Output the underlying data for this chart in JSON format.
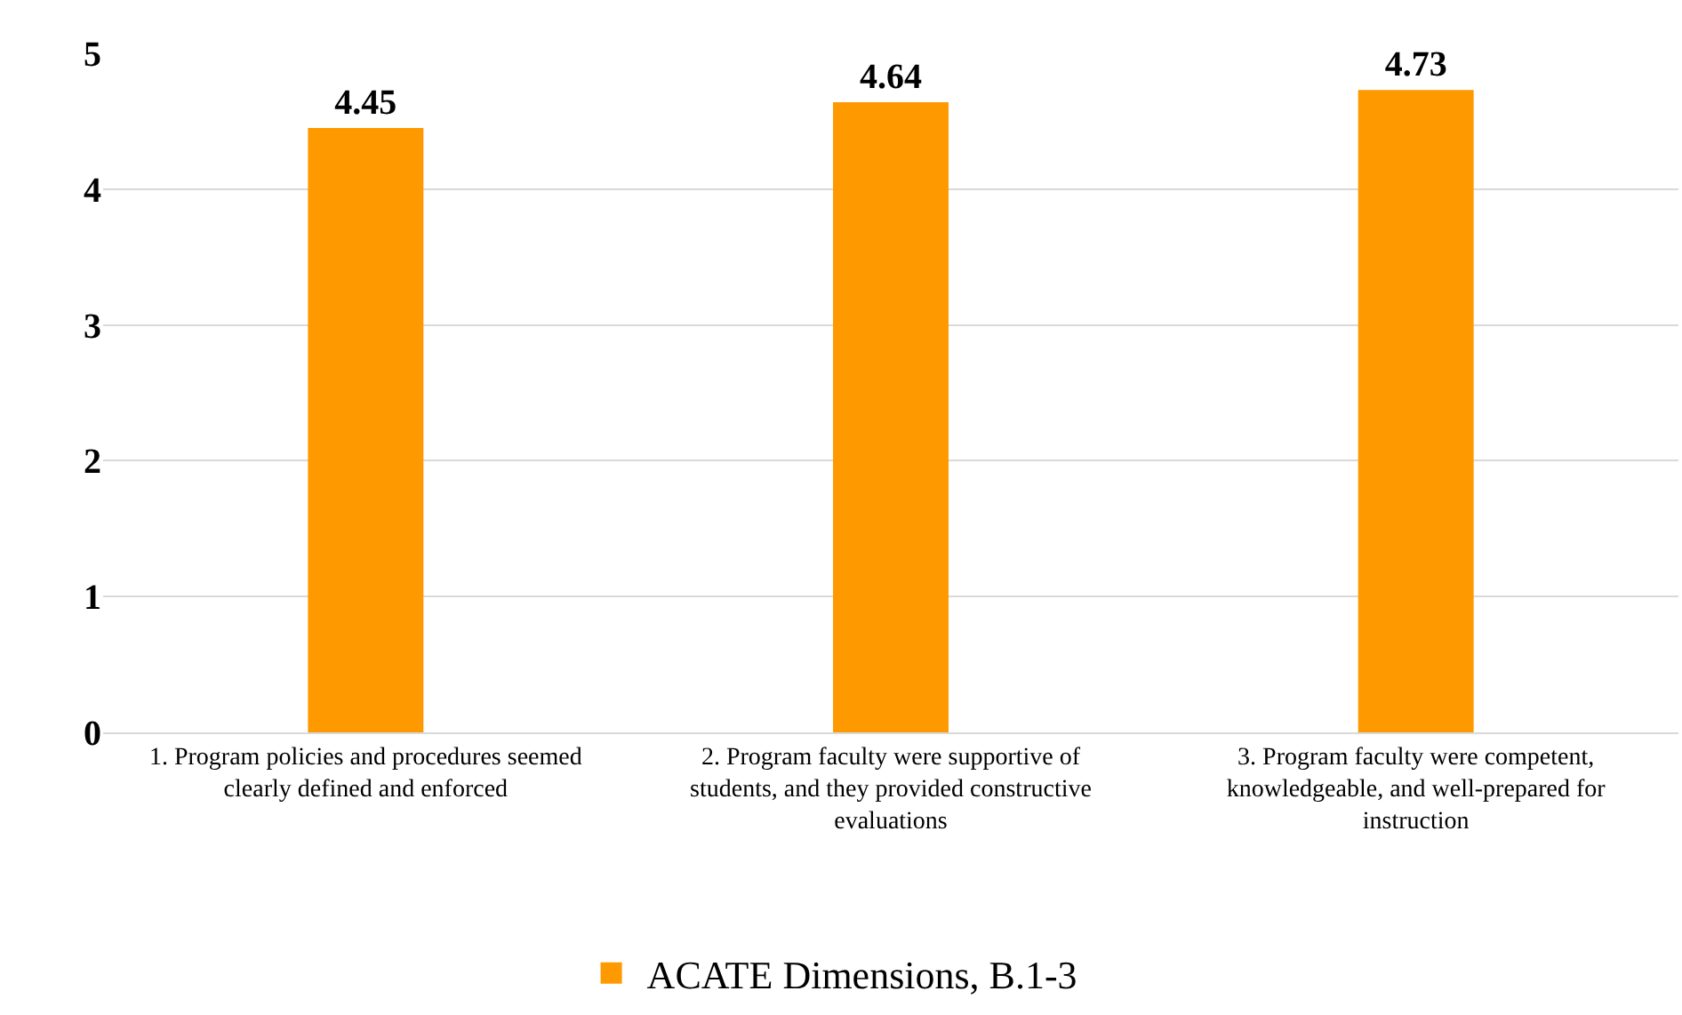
{
  "chart_data": {
    "type": "bar",
    "categories": [
      "1. Program policies and procedures seemed clearly defined and enforced",
      "2. Program faculty were supportive of students, and they provided constructive evaluations",
      "3. Program faculty were competent, knowledgeable, and well-prepared for instruction"
    ],
    "series": [
      {
        "name": "ACATE Dimensions, B.1-3",
        "color": "#ff9900",
        "values": [
          4.45,
          4.64,
          4.73
        ]
      }
    ],
    "ylim": [
      0,
      5
    ],
    "yticks": [
      0,
      1,
      2,
      3,
      4,
      5
    ],
    "grid": "y",
    "legend": "bottom",
    "data_labels": true
  }
}
